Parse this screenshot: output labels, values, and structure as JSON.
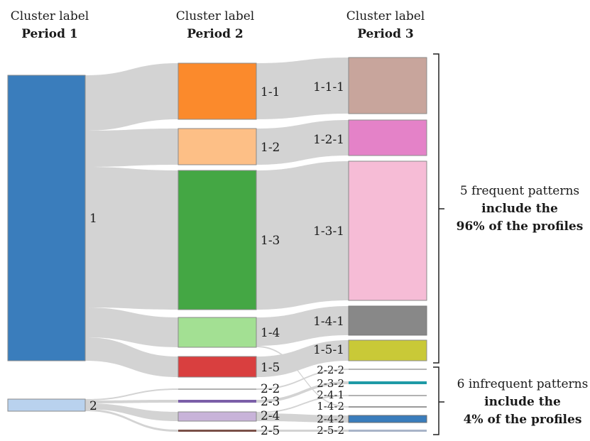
{
  "headers": {
    "period1": {
      "line1": "Cluster label",
      "line2": "Period 1"
    },
    "period2": {
      "line1": "Cluster label",
      "line2": "Period 2"
    },
    "period3": {
      "line1": "Cluster label",
      "line2": "Period 3"
    }
  },
  "period1_nodes": [
    {
      "id": "p1-1",
      "label": "1",
      "color": "#3a7dbc"
    },
    {
      "id": "p1-2",
      "label": "2",
      "color": "#b9d2ee"
    }
  ],
  "period2_nodes": [
    {
      "id": "p2-1-1",
      "label": "1-1",
      "color": "#fb8a2c"
    },
    {
      "id": "p2-1-2",
      "label": "1-2",
      "color": "#fdbf86"
    },
    {
      "id": "p2-1-3",
      "label": "1-3",
      "color": "#44a744"
    },
    {
      "id": "p2-1-4",
      "label": "1-4",
      "color": "#a3e093"
    },
    {
      "id": "p2-1-5",
      "label": "1-5",
      "color": "#d93f3f"
    },
    {
      "id": "p2-2-2",
      "label": "2-2",
      "color": "#cfcfcf"
    },
    {
      "id": "p2-2-3",
      "label": "2-3",
      "color": "#7b5fa8"
    },
    {
      "id": "p2-2-4",
      "label": "2-4",
      "color": "#c8b3d9"
    },
    {
      "id": "p2-2-5",
      "label": "2-5",
      "color": "#7a5048"
    }
  ],
  "period3_nodes": [
    {
      "id": "p3-1-1-1",
      "label": "1-1-1",
      "color": "#c8a59c"
    },
    {
      "id": "p3-1-2-1",
      "label": "1-2-1",
      "color": "#e482c8"
    },
    {
      "id": "p3-1-3-1",
      "label": "1-3-1",
      "color": "#f6bcd6"
    },
    {
      "id": "p3-1-4-1",
      "label": "1-4-1",
      "color": "#888888"
    },
    {
      "id": "p3-1-5-1",
      "label": "1-5-1",
      "color": "#c9c937"
    },
    {
      "id": "p3-2-2-2",
      "label": "2-2-2",
      "color": "#cfcfcf"
    },
    {
      "id": "p3-2-3-2",
      "label": "2-3-2",
      "color": "#1f9aa6"
    },
    {
      "id": "p3-2-4-1",
      "label": "2-4-1",
      "color": "#b2b2b2"
    },
    {
      "id": "p3-1-4-2",
      "label": "1-4-2",
      "color": "#9a9a9a"
    },
    {
      "id": "p3-2-4-2",
      "label": "2-4-2",
      "color": "#3a7dbc"
    },
    {
      "id": "p3-2-5-2",
      "label": "2-5-2",
      "color": "#a8b4c8"
    }
  ],
  "annotations": {
    "frequent": {
      "line1": "5 frequent patterns",
      "line2": "include the",
      "line3": "96% of the profiles"
    },
    "infrequent": {
      "line1": "6 infrequent patterns",
      "line2": "include the",
      "line3": "4% of the profiles"
    }
  },
  "colors": {
    "flow": "#d3d3d3",
    "bracket": "#222222",
    "node_border": "#8a8a8a"
  }
}
